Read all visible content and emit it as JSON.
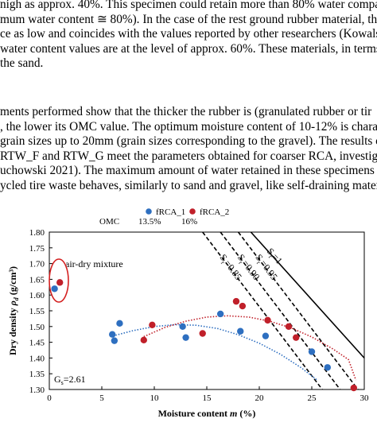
{
  "text": {
    "paragraph1": [
      "nigh as approx. 40%. This specimen could retain more than 80% water compar",
      "mum water content ≅ 80%). In the case of the rest ground rubber material, the",
      "ce as low and coincides with the values reported by other researchers (Kowalska",
      "water content values are at the level of approx. 60%. These materials, in terms o",
      "the sand."
    ],
    "paragraph2": [
      "ments performed show that the thicker the rubber is (granulated rubber or tir",
      ", the lower its OMC value. The optimum moisture content of 10-12% is chara",
      "grain sizes up to 20mm (grain sizes corresponding to the gravel). The results o",
      "RTW_F and RTW_G meet the parameters obtained for coarser RCA, investig",
      "uchowski 2021). The maximum amount of water retained in these specimens is a",
      "ycled tire waste behaves, similarly to sand and gravel, like self-draining materia"
    ]
  },
  "colors": {
    "series1": "#2e6fc0",
    "series2": "#c0202a",
    "ellipse": "#d42020"
  },
  "chart_data": {
    "type": "scatter",
    "xlabel_prefix": "Moisture content ",
    "xlabel_var": "m",
    "xlabel_unit": " (%)",
    "ylabel_prefix": "Dry density ",
    "ylabel_var": "ρ",
    "ylabel_sub": "d",
    "ylabel_unit": " (g/cm³)",
    "xlim": [
      0,
      30
    ],
    "ylim": [
      1.3,
      1.8
    ],
    "xticks": [
      0,
      5,
      10,
      15,
      20,
      25,
      30
    ],
    "yticks": [
      1.3,
      1.35,
      1.4,
      1.45,
      1.5,
      1.55,
      1.6,
      1.65,
      1.7,
      1.75,
      1.8
    ],
    "legend_position": "top",
    "series": [
      {
        "name": "fRCA_1",
        "omc": "13.5%",
        "points": [
          [
            0.5,
            1.62
          ],
          [
            6.0,
            1.475
          ],
          [
            6.2,
            1.455
          ],
          [
            6.7,
            1.51
          ],
          [
            12.7,
            1.5
          ],
          [
            13.0,
            1.465
          ],
          [
            16.3,
            1.54
          ],
          [
            18.2,
            1.485
          ],
          [
            20.6,
            1.47
          ],
          [
            25.0,
            1.42
          ],
          [
            26.5,
            1.37
          ]
        ],
        "trend": [
          [
            5.8,
            1.468
          ],
          [
            8,
            1.487
          ],
          [
            10,
            1.5
          ],
          [
            12,
            1.506
          ],
          [
            14,
            1.504
          ],
          [
            16,
            1.494
          ],
          [
            18,
            1.474
          ],
          [
            20,
            1.447
          ],
          [
            22,
            1.412
          ],
          [
            24,
            1.369
          ],
          [
            25.5,
            1.33
          ]
        ]
      },
      {
        "name": "fRCA_2",
        "omc": "16%",
        "points": [
          [
            1.0,
            1.64
          ],
          [
            9.0,
            1.457
          ],
          [
            9.8,
            1.505
          ],
          [
            14.6,
            1.478
          ],
          [
            17.8,
            1.58
          ],
          [
            18.4,
            1.565
          ],
          [
            20.8,
            1.52
          ],
          [
            22.8,
            1.5
          ],
          [
            23.5,
            1.465
          ],
          [
            29.0,
            1.305
          ]
        ],
        "trend": [
          [
            9.0,
            1.468
          ],
          [
            11,
            1.497
          ],
          [
            13,
            1.517
          ],
          [
            15,
            1.53
          ],
          [
            17,
            1.534
          ],
          [
            19,
            1.53
          ],
          [
            21,
            1.517
          ],
          [
            23,
            1.496
          ],
          [
            25,
            1.467
          ],
          [
            27,
            1.429
          ],
          [
            28.5,
            1.395
          ],
          [
            29.2,
            1.33
          ]
        ]
      }
    ],
    "saturation_lines": [
      {
        "label_prefix": "S",
        "label_sub": "r",
        "label_value": "=1",
        "style": "solid",
        "x": [
          19.2,
          30.0
        ],
        "y": [
          1.8,
          1.4
        ]
      },
      {
        "label_prefix": "S",
        "label_sub": "r",
        "label_value": "=0.95",
        "style": "dashed",
        "x": [
          18.0,
          29.4
        ],
        "y": [
          1.8,
          1.3
        ]
      },
      {
        "label_prefix": "S",
        "label_sub": "r",
        "label_value": "=0.90",
        "style": "dashed",
        "x": [
          16.3,
          27.7
        ],
        "y": [
          1.8,
          1.3
        ]
      },
      {
        "label_prefix": "S",
        "label_sub": "r",
        "label_value": "=0.85",
        "style": "dashed",
        "x": [
          14.6,
          26.0
        ],
        "y": [
          1.8,
          1.3
        ]
      }
    ],
    "annotations": {
      "omc_label": "OMC",
      "air_dry": "air-dry mixture",
      "gs_prefix": "G",
      "gs_sub": "s",
      "gs_value": "=2.61"
    }
  }
}
